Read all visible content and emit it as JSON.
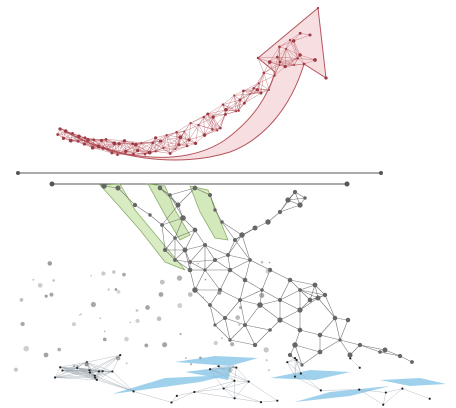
{
  "colors": {
    "background": "#ffffff",
    "arrow_stroke": "#b5545c",
    "arrow_fill": "#f3c9cc",
    "arrow_dots": "#9e3a44",
    "network_line": "#555555",
    "network_node": "#666666",
    "leaf_fill": "#cfe6b4",
    "leaf_stroke": "#7fa85a",
    "bar_line": "#555555",
    "water_fill": "#8ec9ea",
    "water_line": "#9aa4ad",
    "water_node": "#222222",
    "particle": "#888888"
  },
  "icons": {
    "arrow": "rising-arrow-icon",
    "network": "polygon-network-icon"
  }
}
